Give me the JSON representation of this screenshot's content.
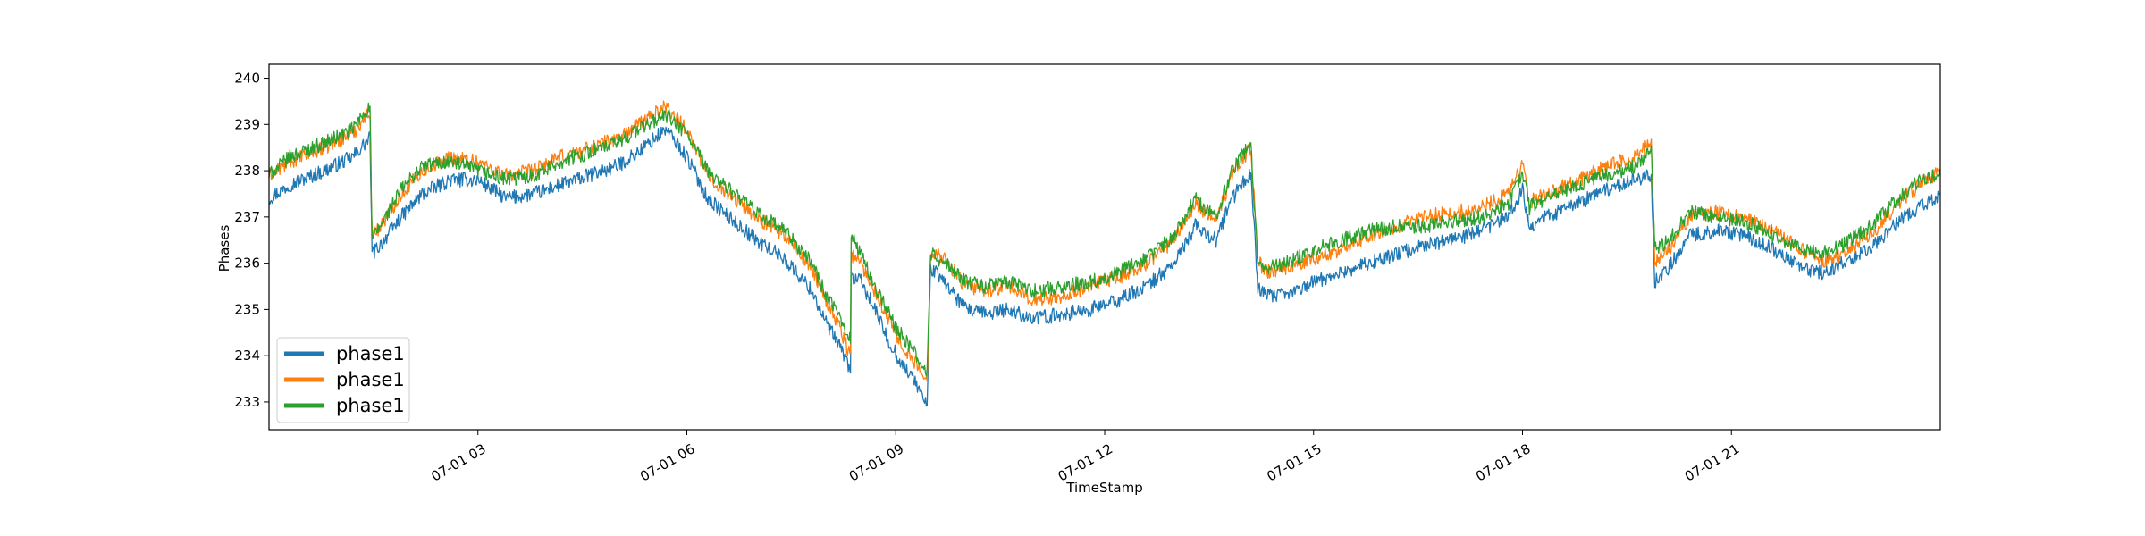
{
  "chart_data": {
    "type": "line",
    "title": "",
    "xlabel": "TimeStamp",
    "ylabel": "Phases",
    "xlim": [
      "07-01 00:00",
      "24:00"
    ],
    "ylim": [
      232.4,
      240.3
    ],
    "xticks": [
      {
        "hour": 3,
        "label": "07-01 03"
      },
      {
        "hour": 6,
        "label": "07-01 06"
      },
      {
        "hour": 9,
        "label": "07-01 09"
      },
      {
        "hour": 12,
        "label": "07-01 12"
      },
      {
        "hour": 15,
        "label": "07-01 15"
      },
      {
        "hour": 18,
        "label": "07-01 18"
      },
      {
        "hour": 21,
        "label": "07-01 21"
      }
    ],
    "yticks": [
      233,
      234,
      235,
      236,
      237,
      238,
      239,
      240
    ],
    "grid": false,
    "legend_position": "lower-left",
    "series": [
      {
        "name": "phase1",
        "color": "#1f77b4",
        "x": [
          0,
          0.3,
          0.8,
          1.2,
          1.45,
          1.48,
          1.6,
          1.9,
          2.2,
          2.6,
          3.0,
          3.4,
          3.8,
          4.2,
          4.6,
          5.0,
          5.3,
          5.7,
          6.0,
          6.3,
          6.6,
          7.0,
          7.4,
          7.8,
          8.0,
          8.2,
          8.35,
          8.36,
          8.5,
          8.7,
          8.9,
          9.1,
          9.3,
          9.45,
          9.5,
          9.7,
          10.0,
          10.3,
          10.6,
          11.0,
          11.4,
          11.8,
          12.2,
          12.6,
          13.0,
          13.3,
          13.6,
          13.8,
          14.0,
          14.1,
          14.2,
          14.3,
          14.6,
          15.0,
          15.4,
          15.8,
          16.2,
          16.6,
          17.0,
          17.4,
          17.8,
          18.0,
          18.1,
          18.2,
          18.5,
          18.8,
          19.2,
          19.6,
          19.85,
          19.9,
          20.1,
          20.4,
          20.8,
          21.2,
          21.6,
          22.0,
          22.3,
          22.6,
          23.0,
          23.4,
          23.7,
          24.0
        ],
        "y": [
          237.4,
          237.7,
          238.0,
          238.3,
          238.7,
          236.2,
          236.4,
          237.0,
          237.5,
          237.8,
          237.8,
          237.4,
          237.5,
          237.7,
          237.9,
          238.1,
          238.4,
          238.9,
          238.3,
          237.4,
          237.0,
          236.5,
          236.1,
          235.4,
          234.7,
          234.2,
          233.7,
          235.7,
          235.6,
          235.0,
          234.3,
          233.8,
          233.4,
          232.9,
          235.9,
          235.6,
          235.0,
          234.9,
          235.0,
          234.8,
          234.9,
          235.0,
          235.2,
          235.5,
          236.0,
          236.8,
          236.5,
          237.3,
          237.8,
          237.9,
          235.5,
          235.3,
          235.3,
          235.6,
          235.8,
          236.0,
          236.2,
          236.4,
          236.5,
          236.7,
          237.0,
          237.6,
          236.8,
          236.9,
          237.1,
          237.3,
          237.6,
          237.8,
          237.9,
          235.6,
          235.9,
          236.6,
          236.7,
          236.6,
          236.3,
          235.9,
          235.8,
          236.0,
          236.3,
          236.9,
          237.2,
          237.5
        ]
      },
      {
        "name": "phase1",
        "color": "#ff7f0e",
        "x": [
          0,
          0.3,
          0.8,
          1.2,
          1.45,
          1.48,
          1.6,
          1.9,
          2.2,
          2.6,
          3.0,
          3.4,
          3.8,
          4.2,
          4.6,
          5.0,
          5.3,
          5.7,
          6.0,
          6.3,
          6.6,
          7.0,
          7.4,
          7.8,
          8.0,
          8.2,
          8.35,
          8.36,
          8.5,
          8.7,
          8.9,
          9.1,
          9.3,
          9.45,
          9.5,
          9.7,
          10.0,
          10.3,
          10.6,
          11.0,
          11.4,
          11.8,
          12.2,
          12.6,
          13.0,
          13.3,
          13.6,
          13.8,
          14.0,
          14.1,
          14.2,
          14.3,
          14.6,
          15.0,
          15.4,
          15.8,
          16.2,
          16.6,
          17.0,
          17.4,
          17.8,
          18.0,
          18.1,
          18.2,
          18.5,
          18.8,
          19.2,
          19.6,
          19.85,
          19.9,
          20.1,
          20.4,
          20.8,
          21.2,
          21.6,
          22.0,
          22.3,
          22.6,
          23.0,
          23.4,
          23.7,
          24.0
        ],
        "y": [
          237.9,
          238.2,
          238.5,
          238.8,
          239.3,
          236.6,
          236.8,
          237.5,
          238.0,
          238.3,
          238.2,
          237.9,
          238.0,
          238.3,
          238.5,
          238.7,
          239.0,
          239.4,
          238.9,
          237.9,
          237.5,
          237.0,
          236.6,
          235.9,
          235.2,
          234.6,
          234.0,
          236.2,
          236.0,
          235.4,
          234.8,
          234.2,
          233.8,
          233.4,
          236.3,
          236.1,
          235.5,
          235.4,
          235.5,
          235.2,
          235.3,
          235.5,
          235.7,
          236.0,
          236.5,
          237.3,
          236.9,
          237.8,
          238.3,
          238.5,
          236.1,
          235.8,
          235.9,
          236.1,
          236.3,
          236.6,
          236.8,
          237.0,
          237.1,
          237.2,
          237.5,
          238.1,
          237.3,
          237.4,
          237.6,
          237.8,
          238.1,
          238.3,
          238.6,
          236.0,
          236.3,
          237.0,
          237.1,
          237.0,
          236.7,
          236.3,
          236.0,
          236.2,
          236.6,
          237.3,
          237.7,
          238.0
        ]
      },
      {
        "name": "phase1",
        "color": "#2ca02c",
        "x": [
          0,
          0.3,
          0.8,
          1.2,
          1.45,
          1.48,
          1.6,
          1.9,
          2.2,
          2.6,
          3.0,
          3.4,
          3.8,
          4.2,
          4.6,
          5.0,
          5.3,
          5.7,
          6.0,
          6.3,
          6.6,
          7.0,
          7.4,
          7.8,
          8.0,
          8.2,
          8.35,
          8.36,
          8.5,
          8.7,
          8.9,
          9.1,
          9.3,
          9.45,
          9.5,
          9.7,
          10.0,
          10.3,
          10.6,
          11.0,
          11.4,
          11.8,
          12.2,
          12.6,
          13.0,
          13.3,
          13.6,
          13.8,
          14.0,
          14.1,
          14.2,
          14.3,
          14.6,
          15.0,
          15.4,
          15.8,
          16.2,
          16.6,
          17.0,
          17.4,
          17.8,
          18.0,
          18.1,
          18.2,
          18.5,
          18.8,
          19.2,
          19.6,
          19.85,
          19.9,
          20.1,
          20.4,
          20.8,
          21.2,
          21.6,
          22.0,
          22.3,
          22.6,
          23.0,
          23.4,
          23.7,
          24.0
        ],
        "y": [
          237.9,
          238.3,
          238.6,
          238.9,
          239.4,
          236.5,
          236.8,
          237.6,
          238.1,
          238.2,
          238.0,
          237.8,
          237.9,
          238.2,
          238.4,
          238.6,
          238.9,
          239.2,
          238.8,
          238.0,
          237.6,
          237.1,
          236.7,
          236.0,
          235.3,
          234.8,
          234.4,
          236.6,
          236.2,
          235.5,
          234.9,
          234.4,
          234.0,
          233.6,
          236.2,
          236.0,
          235.6,
          235.5,
          235.6,
          235.4,
          235.5,
          235.6,
          235.8,
          236.1,
          236.6,
          237.4,
          237.0,
          237.9,
          238.4,
          238.5,
          236.0,
          235.9,
          236.0,
          236.3,
          236.5,
          236.7,
          236.8,
          236.8,
          236.9,
          237.0,
          237.3,
          238.0,
          237.2,
          237.3,
          237.5,
          237.7,
          237.9,
          238.1,
          238.4,
          236.3,
          236.5,
          237.1,
          237.0,
          236.9,
          236.6,
          236.3,
          236.2,
          236.4,
          236.8,
          237.4,
          237.8,
          237.9
        ]
      }
    ]
  }
}
